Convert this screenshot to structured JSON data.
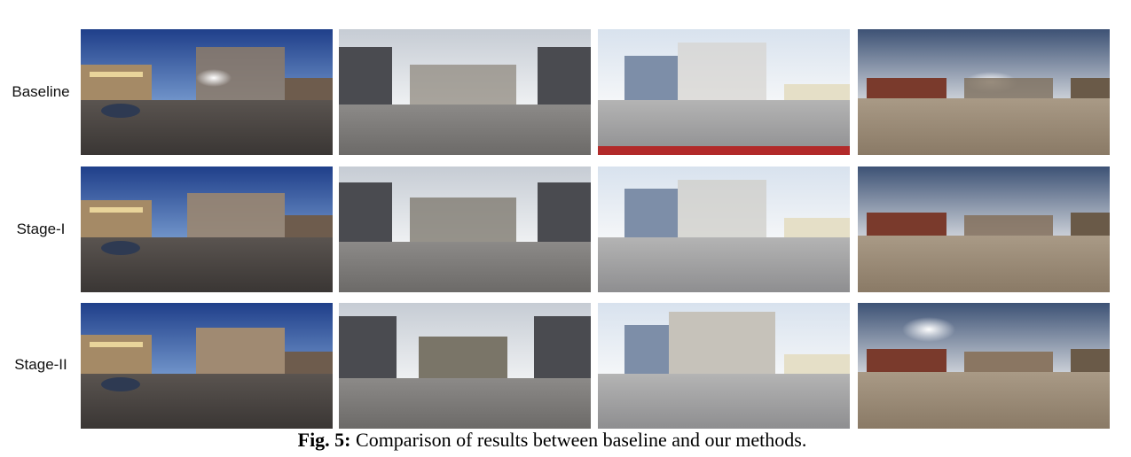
{
  "figure": {
    "rows": [
      {
        "label": "Baseline"
      },
      {
        "label": "Stage-I"
      },
      {
        "label": "Stage-II"
      }
    ],
    "caption": {
      "prefix": "Fig. 5:",
      "text": "Comparison of results between baseline and our methods."
    }
  }
}
